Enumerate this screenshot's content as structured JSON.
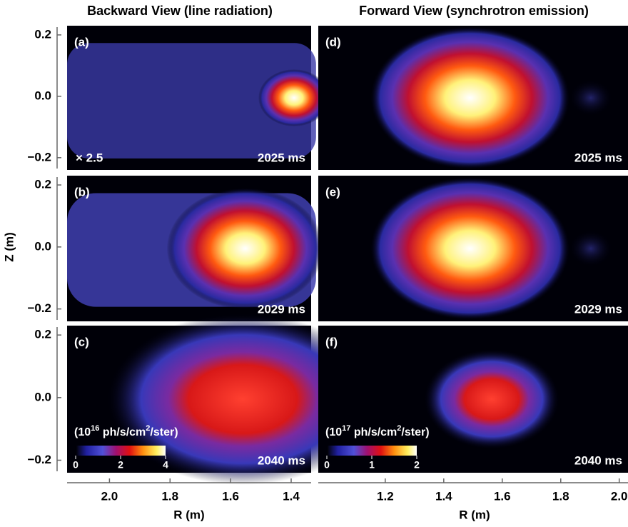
{
  "header": {
    "left_title": "Backward View (line radiation)",
    "right_title": "Forward View (synchrotron emission)"
  },
  "y_axis": {
    "label": "Z (m)",
    "ylim": [
      -0.24,
      0.23
    ],
    "yticks": [
      {
        "value": 0.2,
        "label": "0.2"
      },
      {
        "value": 0,
        "label": "0.0"
      },
      {
        "value": -0.2,
        "label": "−0.2"
      }
    ]
  },
  "x_axes": [
    {
      "label": "R (m)",
      "xlim": [
        2.14,
        1.334
      ],
      "xticks": [
        {
          "value": 2,
          "label": "2.0"
        },
        1.8,
        1.6,
        1.4
      ]
    },
    {
      "label": "R (m)",
      "xlim": [
        0.971,
        2.03
      ],
      "xticks": [
        1.2,
        1.4,
        1.6,
        1.8,
        {
          "value": 2,
          "label": "2.0"
        }
      ]
    }
  ],
  "panels": [
    {
      "label": "(a)",
      "time": "2025 ms",
      "note": "× 2.5"
    },
    {
      "label": "(b)",
      "time": "2029 ms"
    },
    {
      "label": "(c)",
      "time": "2040 ms"
    },
    {
      "label": "(d)",
      "time": "2025 ms"
    },
    {
      "label": "(e)",
      "time": "2029 ms"
    },
    {
      "label": "(f)",
      "time": "2040 ms"
    }
  ],
  "colorbars": [
    {
      "unit": [
        "(10",
        "16",
        " ph/s/cm",
        "2",
        "/ster)"
      ],
      "range": [
        0,
        4
      ],
      "ticks": [
        0,
        2,
        4
      ]
    },
    {
      "unit": [
        "(10",
        "17",
        " ph/s/cm",
        "2",
        "/ster)"
      ],
      "range": [
        0,
        2
      ],
      "ticks": [
        0,
        1,
        2
      ]
    }
  ]
}
